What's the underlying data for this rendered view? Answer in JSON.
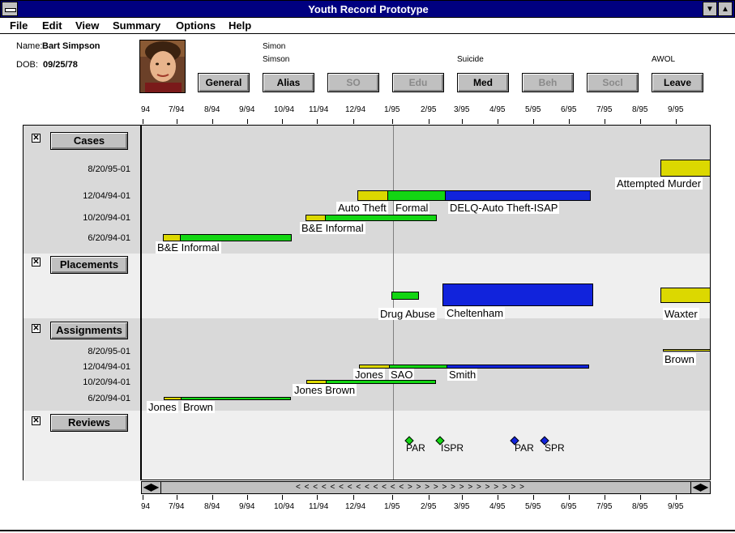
{
  "window": {
    "title": "Youth Record Prototype",
    "min_btn": "▼",
    "max_btn": "▲"
  },
  "menu": [
    "File",
    "Edit",
    "View",
    "Summary",
    "Options",
    "Help"
  ],
  "youth": {
    "name_label": "Name:",
    "name": "Bart Simpson",
    "dob_label": "DOB:",
    "dob": "09/25/78"
  },
  "tab_labels": {
    "simon1": "Simon",
    "simon2": "Simson",
    "suicide": "Suicide",
    "awol": "AWOL"
  },
  "buttons": [
    {
      "label": "General",
      "enabled": true
    },
    {
      "label": "Alias",
      "enabled": true
    },
    {
      "label": "SO",
      "enabled": false
    },
    {
      "label": "Edu",
      "enabled": false
    },
    {
      "label": "Med",
      "enabled": true
    },
    {
      "label": "Beh",
      "enabled": false
    },
    {
      "label": "Socl",
      "enabled": false
    },
    {
      "label": "Leave",
      "enabled": true
    }
  ],
  "timeline_ticks": [
    "94",
    "7/94",
    "8/94",
    "9/94",
    "10/94",
    "11/94",
    "12/94",
    "1/95",
    "2/95",
    "3/95",
    "4/95",
    "5/95",
    "6/95",
    "7/95",
    "8/95",
    "9/95"
  ],
  "sections": {
    "cases": {
      "label": "Cases",
      "checked": "✕",
      "rows": [
        "8/20/95-01",
        "12/04/94-01",
        "10/20/94-01",
        "6/20/94-01"
      ]
    },
    "placements": {
      "label": "Placements",
      "checked": "✕"
    },
    "assignments": {
      "label": "Assignments",
      "checked": "✕",
      "rows": [
        "8/20/95-01",
        "12/04/94-01",
        "10/20/94-01",
        "6/20/94-01"
      ]
    },
    "reviews": {
      "label": "Reviews",
      "checked": "✕"
    }
  },
  "case_labels": {
    "attempted_murder": "Attempted Murder",
    "auto_theft": "Auto Theft",
    "formal": "Formal",
    "delq": "DELQ-Auto Theft-ISAP",
    "be_informal_1": "B&E Informal",
    "be_informal_2": "B&E Informal"
  },
  "placement_labels": {
    "drug_abuse": "Drug Abuse",
    "cheltenham": "Cheltenham",
    "waxter": "Waxter"
  },
  "assignment_labels": {
    "brown_top": "Brown",
    "jones_1": "Jones",
    "sao": "SAO",
    "smith": "Smith",
    "jones_brown": "Jones Brown",
    "jones_2": "Jones",
    "brown_2": "Brown"
  },
  "review_labels": [
    "PAR",
    "ISPR",
    "PAR",
    "SPR"
  ],
  "review_colors": [
    "#13d613",
    "#13d613",
    "#1123dc",
    "#1123dc"
  ],
  "scrollbar": {
    "left_arrow": "◀▶",
    "right_arrow": "◀▶",
    "thumb": "< < < < < < < < < < < < < > > > > > > > > > > > > > >"
  },
  "colors": {
    "yellow": "#dcd800",
    "green": "#13d613",
    "blue": "#1123dc",
    "titlebar": "#000080"
  }
}
